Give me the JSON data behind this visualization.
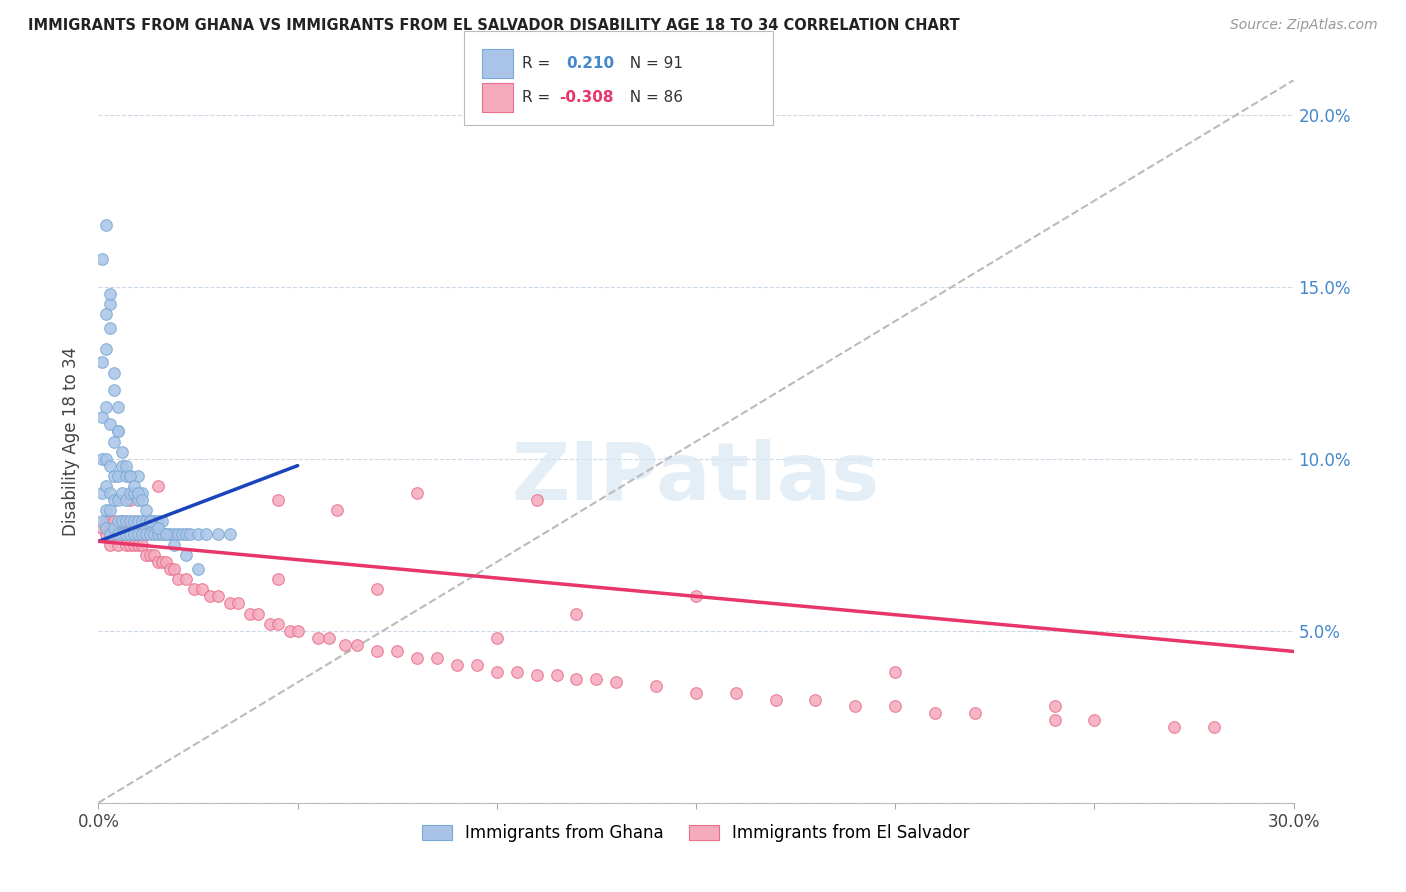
{
  "title": "IMMIGRANTS FROM GHANA VS IMMIGRANTS FROM EL SALVADOR DISABILITY AGE 18 TO 34 CORRELATION CHART",
  "source": "Source: ZipAtlas.com",
  "ylabel": "Disability Age 18 to 34",
  "xlim": [
    0.0,
    0.3
  ],
  "ylim": [
    0.0,
    0.21
  ],
  "ghana_color": "#aac4e8",
  "ghana_edge": "#7aaad4",
  "salvador_color": "#f5aabe",
  "salvador_edge": "#e8708a",
  "trend_ghana_color": "#1a44bb",
  "trend_salvador_color": "#e8356a",
  "trend_dashed_color": "#bbbbbb",
  "R_ghana": 0.21,
  "N_ghana": 91,
  "R_salvador": -0.308,
  "N_salvador": 86,
  "watermark": "ZIPatlas",
  "ghana_x": [
    0.001,
    0.001,
    0.001,
    0.001,
    0.001,
    0.002,
    0.002,
    0.002,
    0.002,
    0.002,
    0.002,
    0.003,
    0.003,
    0.003,
    0.003,
    0.003,
    0.003,
    0.004,
    0.004,
    0.004,
    0.004,
    0.004,
    0.005,
    0.005,
    0.005,
    0.005,
    0.005,
    0.006,
    0.006,
    0.006,
    0.006,
    0.007,
    0.007,
    0.007,
    0.007,
    0.008,
    0.008,
    0.008,
    0.008,
    0.009,
    0.009,
    0.009,
    0.01,
    0.01,
    0.01,
    0.01,
    0.011,
    0.011,
    0.011,
    0.012,
    0.012,
    0.013,
    0.013,
    0.014,
    0.014,
    0.015,
    0.015,
    0.016,
    0.016,
    0.017,
    0.018,
    0.019,
    0.02,
    0.021,
    0.022,
    0.023,
    0.025,
    0.027,
    0.03,
    0.033,
    0.001,
    0.002,
    0.002,
    0.003,
    0.003,
    0.004,
    0.005,
    0.005,
    0.006,
    0.007,
    0.008,
    0.009,
    0.01,
    0.011,
    0.012,
    0.013,
    0.015,
    0.017,
    0.019,
    0.022,
    0.025
  ],
  "ghana_y": [
    0.082,
    0.09,
    0.1,
    0.112,
    0.128,
    0.08,
    0.085,
    0.092,
    0.1,
    0.115,
    0.132,
    0.078,
    0.085,
    0.09,
    0.098,
    0.11,
    0.145,
    0.08,
    0.088,
    0.095,
    0.105,
    0.12,
    0.078,
    0.082,
    0.088,
    0.095,
    0.108,
    0.078,
    0.082,
    0.09,
    0.098,
    0.078,
    0.082,
    0.088,
    0.095,
    0.078,
    0.082,
    0.09,
    0.095,
    0.078,
    0.082,
    0.09,
    0.078,
    0.082,
    0.088,
    0.095,
    0.078,
    0.082,
    0.09,
    0.078,
    0.082,
    0.078,
    0.082,
    0.078,
    0.082,
    0.078,
    0.082,
    0.078,
    0.082,
    0.078,
    0.078,
    0.078,
    0.078,
    0.078,
    0.078,
    0.078,
    0.078,
    0.078,
    0.078,
    0.078,
    0.158,
    0.142,
    0.168,
    0.148,
    0.138,
    0.125,
    0.115,
    0.108,
    0.102,
    0.098,
    0.095,
    0.092,
    0.09,
    0.088,
    0.085,
    0.082,
    0.08,
    0.078,
    0.075,
    0.072,
    0.068
  ],
  "salvador_x": [
    0.001,
    0.002,
    0.002,
    0.003,
    0.003,
    0.004,
    0.004,
    0.005,
    0.005,
    0.006,
    0.006,
    0.007,
    0.007,
    0.008,
    0.008,
    0.009,
    0.009,
    0.01,
    0.01,
    0.011,
    0.012,
    0.012,
    0.013,
    0.014,
    0.015,
    0.016,
    0.017,
    0.018,
    0.019,
    0.02,
    0.022,
    0.024,
    0.026,
    0.028,
    0.03,
    0.033,
    0.035,
    0.038,
    0.04,
    0.043,
    0.045,
    0.048,
    0.05,
    0.055,
    0.058,
    0.062,
    0.065,
    0.07,
    0.075,
    0.08,
    0.085,
    0.09,
    0.095,
    0.1,
    0.105,
    0.11,
    0.115,
    0.12,
    0.125,
    0.13,
    0.14,
    0.15,
    0.16,
    0.17,
    0.18,
    0.19,
    0.2,
    0.21,
    0.22,
    0.24,
    0.25,
    0.27,
    0.28,
    0.008,
    0.015,
    0.045,
    0.06,
    0.08,
    0.11,
    0.15,
    0.2,
    0.24,
    0.12,
    0.045,
    0.07,
    0.1
  ],
  "salvador_y": [
    0.08,
    0.078,
    0.082,
    0.075,
    0.082,
    0.078,
    0.082,
    0.075,
    0.08,
    0.078,
    0.082,
    0.075,
    0.08,
    0.075,
    0.08,
    0.075,
    0.08,
    0.075,
    0.078,
    0.075,
    0.072,
    0.078,
    0.072,
    0.072,
    0.07,
    0.07,
    0.07,
    0.068,
    0.068,
    0.065,
    0.065,
    0.062,
    0.062,
    0.06,
    0.06,
    0.058,
    0.058,
    0.055,
    0.055,
    0.052,
    0.052,
    0.05,
    0.05,
    0.048,
    0.048,
    0.046,
    0.046,
    0.044,
    0.044,
    0.042,
    0.042,
    0.04,
    0.04,
    0.038,
    0.038,
    0.037,
    0.037,
    0.036,
    0.036,
    0.035,
    0.034,
    0.032,
    0.032,
    0.03,
    0.03,
    0.028,
    0.028,
    0.026,
    0.026,
    0.024,
    0.024,
    0.022,
    0.022,
    0.088,
    0.092,
    0.088,
    0.085,
    0.09,
    0.088,
    0.06,
    0.038,
    0.028,
    0.055,
    0.065,
    0.062,
    0.048
  ],
  "ghana_trend_x": [
    0.0,
    0.05
  ],
  "ghana_trend_y": [
    0.076,
    0.098
  ],
  "salvador_trend_x": [
    0.0,
    0.3
  ],
  "salvador_trend_y": [
    0.076,
    0.044
  ]
}
